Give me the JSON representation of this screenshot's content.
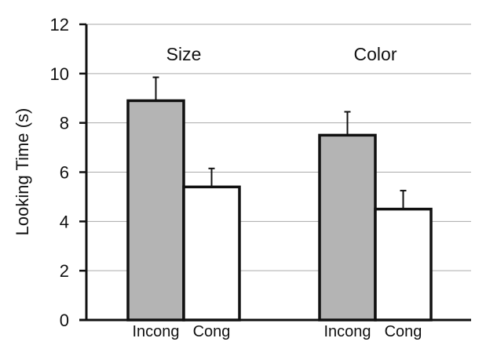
{
  "chart_data": {
    "type": "bar",
    "ylabel": "Looking Time (s)",
    "ylim": [
      0,
      12
    ],
    "yticks": [
      0,
      2,
      4,
      6,
      8,
      10,
      12
    ],
    "grid": true,
    "groups": [
      {
        "label": "Size",
        "bars": [
          {
            "category": "Incong",
            "value": 8.9,
            "error": 0.95
          },
          {
            "category": "Cong",
            "value": 5.4,
            "error": 0.75
          }
        ]
      },
      {
        "label": "Color",
        "bars": [
          {
            "category": "Incong",
            "value": 7.5,
            "error": 0.95
          },
          {
            "category": "Cong",
            "value": 4.5,
            "error": 0.75
          }
        ]
      }
    ],
    "colors": {
      "Incong": "#b4b4b4",
      "Cong": "#ffffff",
      "outline": "#111111",
      "grid": "#aaaaaa"
    }
  }
}
